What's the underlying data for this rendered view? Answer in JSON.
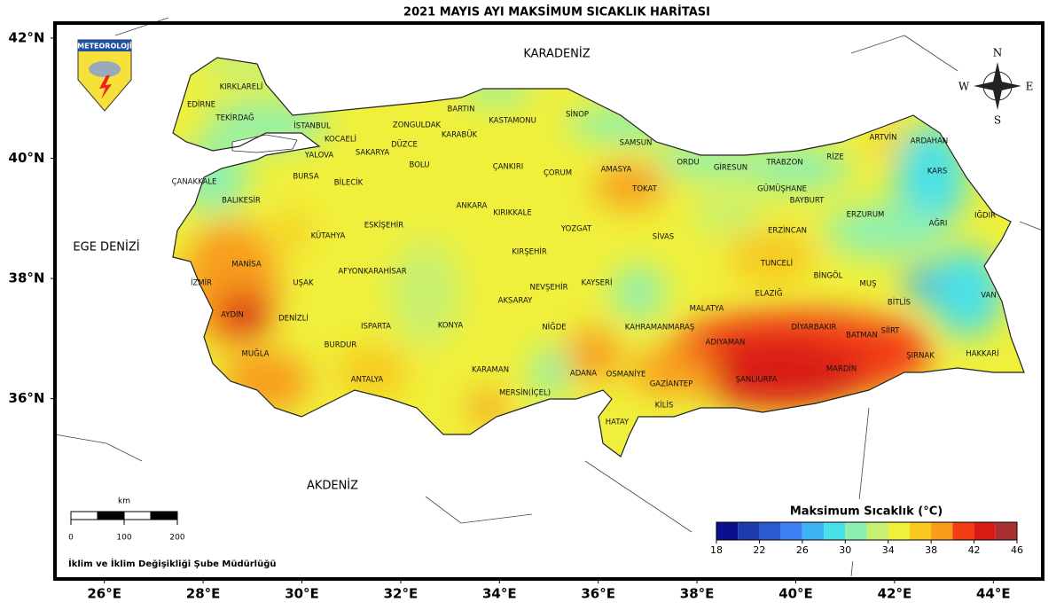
{
  "title": "2021 MAYIS AYI MAKSİMUM SICAKLIK HARİTASI",
  "logo": "METEOROLOJİ",
  "seas": [
    "KARADENİZ",
    "EGE DENİZİ",
    "AKDENİZ"
  ],
  "compass": [
    "N",
    "E",
    "S",
    "W"
  ],
  "map": {
    "xlim": [
      25,
      45
    ],
    "ylim": [
      33,
      42.25
    ],
    "xticks": [
      {
        "value": 26,
        "label": "26°E"
      },
      {
        "value": 28,
        "label": "28°E"
      },
      {
        "value": 30,
        "label": "30°E"
      },
      {
        "value": 32,
        "label": "32°E"
      },
      {
        "value": 34,
        "label": "34°E"
      },
      {
        "value": 36,
        "label": "36°E"
      },
      {
        "value": 38,
        "label": "38°E"
      },
      {
        "value": 40,
        "label": "40°E"
      },
      {
        "value": 42,
        "label": "42°E"
      },
      {
        "value": 44,
        "label": "44°E"
      }
    ],
    "yticks": [
      {
        "value": 36,
        "label": "36°N"
      },
      {
        "value": 38,
        "label": "38°N"
      },
      {
        "value": 40,
        "label": "40°N"
      },
      {
        "value": 42,
        "label": "42°N"
      }
    ]
  },
  "provinces": [
    "KIRKLARELİ",
    "EDİRNE",
    "TEKİRDAĞ",
    "İSTANBUL",
    "KOCAELİ",
    "YALOVA",
    "SAKARYA",
    "DÜZCE",
    "ZONGULDAK",
    "BARTIN",
    "KARABÜK",
    "KASTAMONU",
    "SİNOP",
    "SAMSUN",
    "ORDU",
    "GİRESUN",
    "TRABZON",
    "RİZE",
    "ARTVİN",
    "ARDAHAN",
    "KARS",
    "IĞDIR",
    "AĞRI",
    "ERZURUM",
    "BAYBURT",
    "GÜMÜŞHANE",
    "ERZİNCAN",
    "TUNCELİ",
    "BİNGÖL",
    "MUŞ",
    "VAN",
    "BİTLİS",
    "HAKKARİ",
    "ŞIRNAK",
    "SİİRT",
    "BATMAN",
    "MARDİN",
    "DİYARBAKIR",
    "ŞANLIURFA",
    "ADIYAMAN",
    "MALATYA",
    "ELAZIĞ",
    "SİVAS",
    "TOKAT",
    "AMASYA",
    "ÇORUM",
    "YOZGAT",
    "ÇANKIRI",
    "KIRIKKALE",
    "ANKARA",
    "KIRŞEHİR",
    "NEVŞEHİR",
    "AKSARAY",
    "KAYSERİ",
    "NİĞDE",
    "KAHRAMANMARAŞ",
    "ADANA",
    "OSMANİYE",
    "GAZİANTEP",
    "KİLİS",
    "HATAY",
    "MERSİN(İÇEL)",
    "KARAMAN",
    "KONYA",
    "ANTALYA",
    "BURDUR",
    "ISPARTA",
    "AFYONKARAHİSAR",
    "KÜTAHYA",
    "ESKİŞEHİR",
    "BİLECİK",
    "BURSA",
    "BOLU",
    "BALIKESİR",
    "ÇANAKKALE",
    "MANİSA",
    "İZMİR",
    "UŞAK",
    "AYDIN",
    "DENİZLİ",
    "MUĞLA"
  ],
  "colorbar": {
    "title": "Maksimum Sıcaklık (°C)",
    "bounds": [
      18,
      20,
      22,
      24,
      26,
      28,
      30,
      32,
      34,
      36,
      38,
      40,
      42,
      44,
      46
    ],
    "colors": [
      "#0a0f8f",
      "#1c3aad",
      "#2a5bd0",
      "#3f7ff5",
      "#3fb2f5",
      "#4ae0e8",
      "#8ef0b0",
      "#c8f070",
      "#f0f03c",
      "#f8c81c",
      "#f89c1a",
      "#f23c14",
      "#d81a14",
      "#a83030"
    ],
    "ticks": [
      18,
      22,
      26,
      30,
      34,
      38,
      42,
      46
    ]
  },
  "scale_bar": {
    "unit": "km",
    "ticks": [
      0,
      100,
      200
    ]
  },
  "footer": "İklim ve İklim Değişikliği Şube Müdürlüğü"
}
